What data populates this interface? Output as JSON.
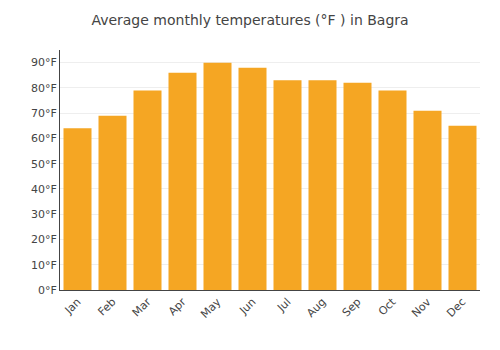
{
  "chart_data": {
    "type": "bar",
    "title": "Average monthly temperatures (°F ) in Bagra",
    "categories": [
      "Jan",
      "Feb",
      "Mar",
      "Apr",
      "May",
      "Jun",
      "Jul",
      "Aug",
      "Sep",
      "Oct",
      "Nov",
      "Dec"
    ],
    "values": [
      64,
      69,
      79,
      86,
      90,
      88,
      83,
      83,
      82,
      79,
      71,
      65
    ],
    "color": "#F5A623",
    "ylim": [
      0,
      95
    ],
    "yticks": [
      {
        "value": 0,
        "label": "0°F"
      },
      {
        "value": 10,
        "label": "10°F"
      },
      {
        "value": 20,
        "label": "20°F"
      },
      {
        "value": 30,
        "label": "30°F"
      },
      {
        "value": 40,
        "label": "40°F"
      },
      {
        "value": 50,
        "label": "50°F"
      },
      {
        "value": 60,
        "label": "60°F"
      },
      {
        "value": 70,
        "label": "70°F"
      },
      {
        "value": 80,
        "label": "80°F"
      },
      {
        "value": 90,
        "label": "90°F"
      }
    ],
    "grid": true
  }
}
